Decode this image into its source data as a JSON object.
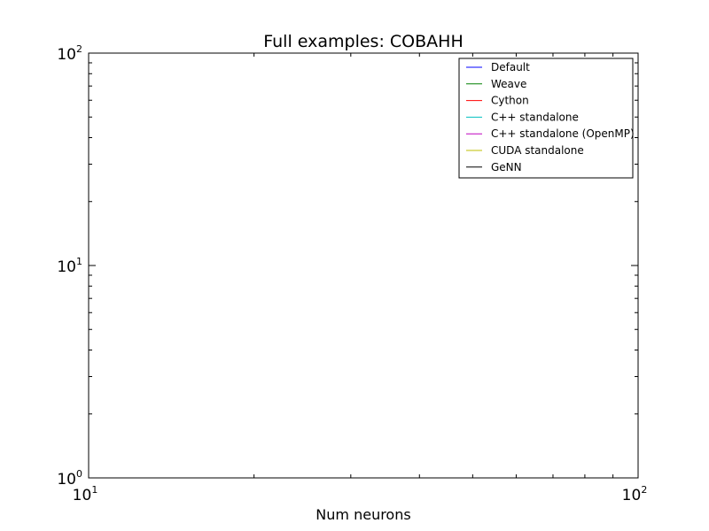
{
  "chart_data": {
    "type": "line",
    "title": "Full examples: COBAHH",
    "xlabel": "Num neurons",
    "ylabel": "",
    "xscale": "log",
    "yscale": "log",
    "xlim": [
      10,
      100
    ],
    "ylim": [
      1,
      100
    ],
    "x_major_ticks": [
      {
        "base": "10",
        "exp": "1",
        "value": 10
      },
      {
        "base": "10",
        "exp": "2",
        "value": 100
      }
    ],
    "y_major_ticks": [
      {
        "base": "10",
        "exp": "0",
        "value": 1
      },
      {
        "base": "10",
        "exp": "1",
        "value": 10
      },
      {
        "base": "10",
        "exp": "2",
        "value": 100
      }
    ],
    "grid": false,
    "legend_position": "top-right",
    "series": [
      {
        "name": "Default",
        "color": "#0000ff",
        "x": [],
        "y": []
      },
      {
        "name": "Weave",
        "color": "#008000",
        "x": [],
        "y": []
      },
      {
        "name": "Cython",
        "color": "#ff0000",
        "x": [],
        "y": []
      },
      {
        "name": "C++ standalone",
        "color": "#00bfbf",
        "x": [],
        "y": []
      },
      {
        "name": "C++ standalone (OpenMP)",
        "color": "#bf00bf",
        "x": [],
        "y": []
      },
      {
        "name": "CUDA standalone",
        "color": "#bfbf00",
        "x": [],
        "y": []
      },
      {
        "name": "GeNN",
        "color": "#000000",
        "x": [],
        "y": []
      }
    ]
  }
}
